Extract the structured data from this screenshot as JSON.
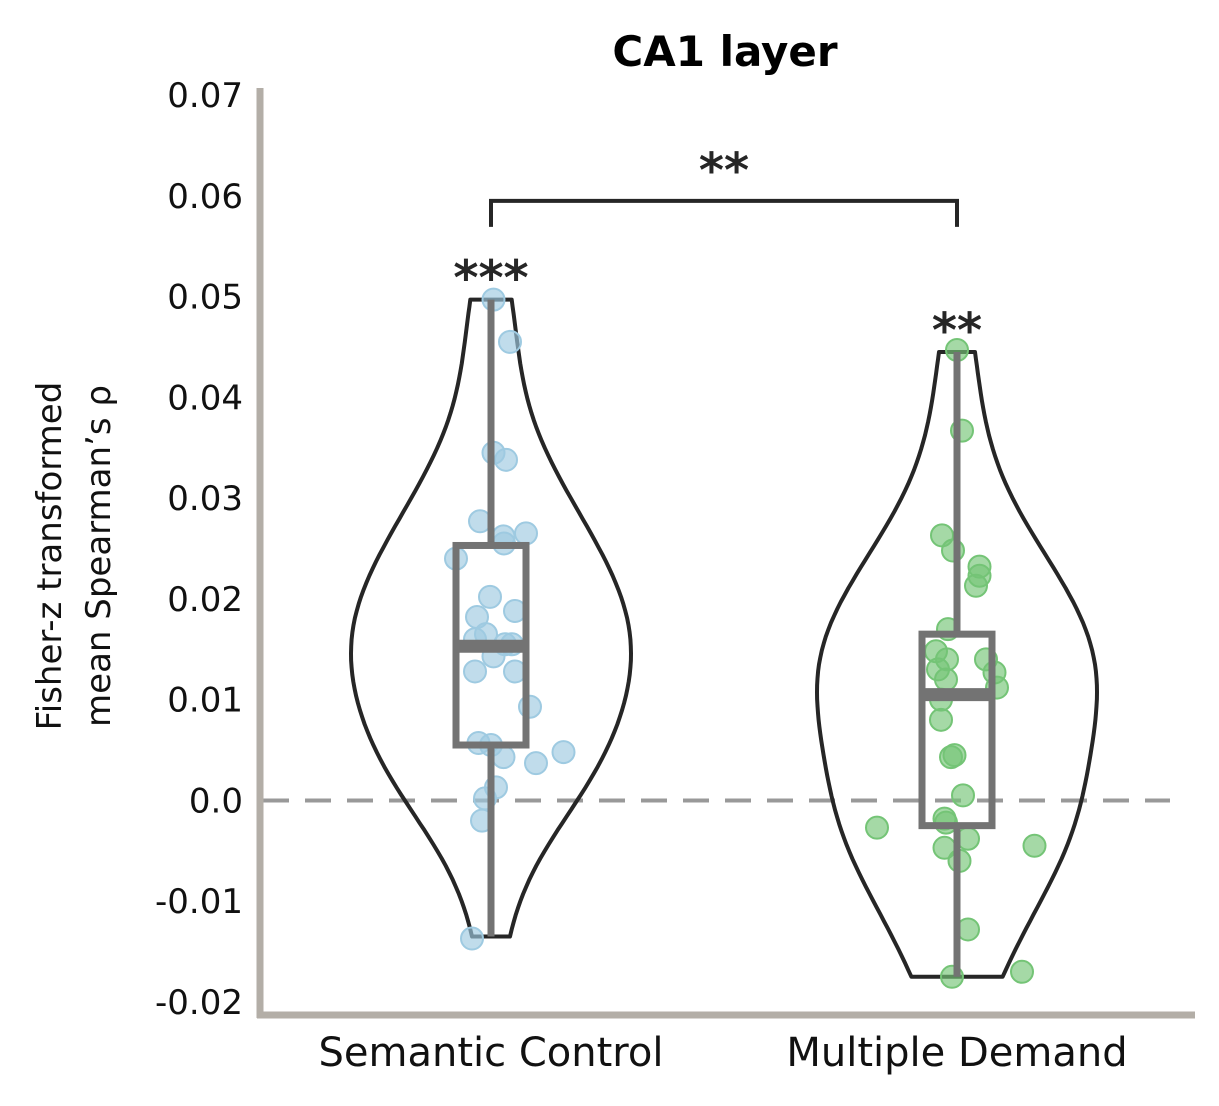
{
  "chart_data": {
    "type": "violin",
    "title": "CA1 layer",
    "ylabel_lines": [
      "Fisher-z transformed",
      "mean Spearman’s ρ"
    ],
    "xlabel": "",
    "ylim": [
      -0.021,
      0.071
    ],
    "yticks": [
      -0.02,
      -0.01,
      0.0,
      0.01,
      0.02,
      0.03,
      0.04,
      0.05,
      0.06,
      0.07
    ],
    "ytick_labels": [
      "-0.02",
      "-0.01",
      "0.0",
      "0.01",
      "0.02",
      "0.03",
      "0.04",
      "0.05",
      "0.06",
      "0.07"
    ],
    "categories": [
      "Semantic Control",
      "Multiple Demand"
    ],
    "reference_line": 0.0,
    "grid": false,
    "colors": {
      "axis": "#b3aea7",
      "violin": "#262626",
      "box": "#737373",
      "zero_line": "#999999",
      "Semantic Control": "#9ecae1",
      "Multiple Demand": "#74c476"
    },
    "series": [
      {
        "category": "Semantic Control",
        "box": {
          "q1": 0.0055,
          "median": 0.0153,
          "q3": 0.0253,
          "whisker_low": -0.0135,
          "whisker_high": 0.0497
        },
        "violin_range": [
          -0.0135,
          0.0497
        ],
        "significance": "***",
        "points": [
          {
            "dx": 0.05,
            "y": 0.0497
          },
          {
            "dx": 0.38,
            "y": 0.0455
          },
          {
            "dx": 0.05,
            "y": 0.0345
          },
          {
            "dx": 0.3,
            "y": 0.0338
          },
          {
            "dx": -0.22,
            "y": 0.0277
          },
          {
            "dx": 0.25,
            "y": 0.0262
          },
          {
            "dx": 0.7,
            "y": 0.0265
          },
          {
            "dx": 0.26,
            "y": 0.0255
          },
          {
            "dx": -0.7,
            "y": 0.024
          },
          {
            "dx": -0.02,
            "y": 0.0202
          },
          {
            "dx": 0.48,
            "y": 0.0188
          },
          {
            "dx": -0.28,
            "y": 0.0182
          },
          {
            "dx": -0.1,
            "y": 0.0165
          },
          {
            "dx": -0.32,
            "y": 0.016
          },
          {
            "dx": 0.28,
            "y": 0.0155
          },
          {
            "dx": 0.42,
            "y": 0.0155
          },
          {
            "dx": 0.05,
            "y": 0.0143
          },
          {
            "dx": -0.32,
            "y": 0.0128
          },
          {
            "dx": 0.48,
            "y": 0.0128
          },
          {
            "dx": 0.78,
            "y": 0.0093
          },
          {
            "dx": -0.25,
            "y": 0.0057
          },
          {
            "dx": 0.0,
            "y": 0.0055
          },
          {
            "dx": 0.25,
            "y": 0.0043
          },
          {
            "dx": 1.45,
            "y": 0.0048
          },
          {
            "dx": 0.9,
            "y": 0.0037
          },
          {
            "dx": 0.1,
            "y": 0.0013
          },
          {
            "dx": -0.12,
            "y": 0.0002
          },
          {
            "dx": -0.18,
            "y": -0.002
          },
          {
            "dx": -0.38,
            "y": -0.0137
          }
        ]
      },
      {
        "category": "Multiple Demand",
        "box": {
          "q1": -0.0025,
          "median": 0.0105,
          "q3": 0.0165,
          "whisker_low": -0.0175,
          "whisker_high": 0.0445
        },
        "violin_range": [
          -0.0175,
          0.0445
        ],
        "significance": "**",
        "points": [
          {
            "dx": 0.0,
            "y": 0.0447
          },
          {
            "dx": 0.1,
            "y": 0.0367
          },
          {
            "dx": -0.3,
            "y": 0.0263
          },
          {
            "dx": -0.08,
            "y": 0.0248
          },
          {
            "dx": 0.45,
            "y": 0.0232
          },
          {
            "dx": 0.45,
            "y": 0.0223
          },
          {
            "dx": 0.38,
            "y": 0.0213
          },
          {
            "dx": -0.18,
            "y": 0.017
          },
          {
            "dx": -0.42,
            "y": 0.0148
          },
          {
            "dx": -0.2,
            "y": 0.014
          },
          {
            "dx": 0.58,
            "y": 0.014
          },
          {
            "dx": -0.38,
            "y": 0.013
          },
          {
            "dx": 0.75,
            "y": 0.0127
          },
          {
            "dx": -0.22,
            "y": 0.012
          },
          {
            "dx": 0.8,
            "y": 0.0112
          },
          {
            "dx": -0.32,
            "y": 0.01
          },
          {
            "dx": -0.32,
            "y": 0.008
          },
          {
            "dx": -0.05,
            "y": 0.0045
          },
          {
            "dx": -0.12,
            "y": 0.0043
          },
          {
            "dx": 0.12,
            "y": 0.0005
          },
          {
            "dx": -1.6,
            "y": -0.0027
          },
          {
            "dx": -0.25,
            "y": -0.0018
          },
          {
            "dx": -0.22,
            "y": -0.0022
          },
          {
            "dx": 0.22,
            "y": -0.0038
          },
          {
            "dx": -0.25,
            "y": -0.0047
          },
          {
            "dx": 0.05,
            "y": -0.006
          },
          {
            "dx": 1.55,
            "y": -0.0045
          },
          {
            "dx": 0.22,
            "y": -0.0128
          },
          {
            "dx": 1.3,
            "y": -0.017
          },
          {
            "dx": -0.1,
            "y": -0.0175
          }
        ]
      }
    ],
    "comparison": {
      "between": [
        "Semantic Control",
        "Multiple Demand"
      ],
      "label": "**",
      "y": 0.0595
    }
  }
}
